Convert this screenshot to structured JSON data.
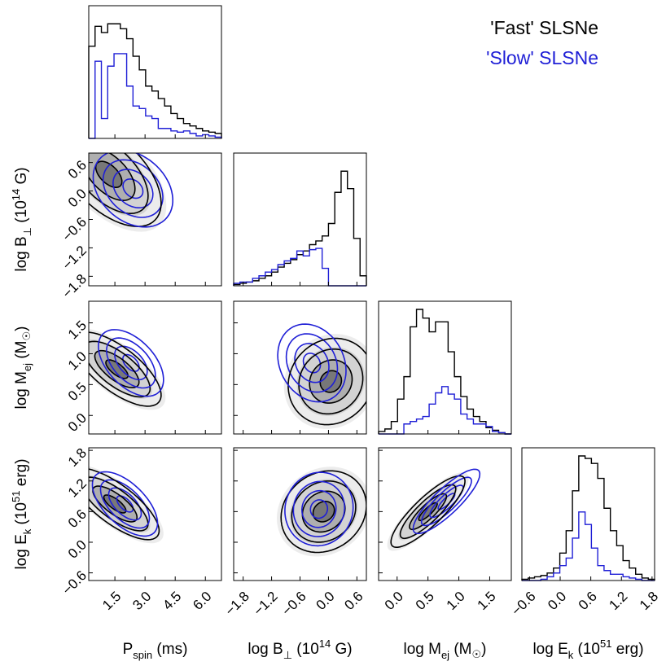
{
  "chart_data": {
    "type": "corner",
    "legend": [
      {
        "label": "'Fast' SLSNe",
        "color": "#000000"
      },
      {
        "label": "'Slow' SLSNe",
        "color": "#1f1fd6"
      }
    ],
    "parameters": [
      {
        "key": "P",
        "base": "P",
        "sub": "spin",
        "unit": "(ms)",
        "range": [
          0.2,
          6.8
        ],
        "ticks": [
          1.5,
          3.0,
          4.5,
          6.0
        ],
        "tick_labels": [
          "1.5",
          "3.0",
          "4.5",
          "6.0"
        ]
      },
      {
        "key": "B",
        "base": "log B",
        "sub": "⊥",
        "unit": "(10",
        "sup": "14",
        "unit_end": " G)",
        "range": [
          -2.0,
          0.8
        ],
        "ticks": [
          -1.8,
          -1.2,
          -0.6,
          0.0,
          0.6
        ],
        "tick_labels": [
          "−1.8",
          "−1.2",
          "−0.6",
          "0.0",
          "0.6"
        ]
      },
      {
        "key": "M",
        "base": "log M",
        "sub": "ej",
        "unit": "(M",
        "sym": "☉",
        "unit_end": ")",
        "range": [
          -0.3,
          1.85
        ],
        "ticks": [
          0.0,
          0.5,
          1.0,
          1.5
        ],
        "tick_labels": [
          "0.0",
          "0.5",
          "1.0",
          "1.5"
        ]
      },
      {
        "key": "E",
        "base": "log E",
        "sub": "k",
        "unit": "(10",
        "sup": "51",
        "unit_end": " erg)",
        "range": [
          -0.75,
          1.85
        ],
        "ticks": [
          -0.6,
          0.0,
          0.6,
          1.2,
          1.8
        ],
        "tick_labels": [
          "−0.6",
          "0.0",
          "0.6",
          "1.2",
          "1.8"
        ]
      }
    ],
    "histograms": [
      {
        "param": "P",
        "bins": [
          0.2,
          6.8
        ],
        "fast": [
          0.74,
          0.9,
          0.85,
          0.92,
          0.92,
          0.88,
          0.8,
          0.66,
          0.55,
          0.42,
          0.38,
          0.32,
          0.26,
          0.2,
          0.16,
          0.12,
          0.1,
          0.08,
          0.06,
          0.05,
          0.04
        ],
        "slow": [
          0.0,
          0.62,
          0.16,
          0.58,
          0.68,
          0.68,
          0.42,
          0.26,
          0.24,
          0.18,
          0.16,
          0.08,
          0.08,
          0.06,
          0.05,
          0.06,
          0.04,
          0.02,
          0.03,
          0.02,
          0.01
        ]
      },
      {
        "param": "B",
        "bins": [
          -2.0,
          0.8
        ],
        "fast": [
          0.01,
          0.02,
          0.03,
          0.04,
          0.06,
          0.08,
          0.11,
          0.15,
          0.18,
          0.21,
          0.25,
          0.28,
          0.33,
          0.36,
          0.4,
          0.5,
          0.75,
          0.92,
          0.78,
          0.38,
          0.08
        ],
        "slow": [
          0.02,
          0.03,
          0.03,
          0.06,
          0.08,
          0.11,
          0.13,
          0.17,
          0.2,
          0.22,
          0.28,
          0.24,
          0.29,
          0.3,
          0.14,
          0.0,
          0.0,
          0.0,
          0.0,
          0.0,
          0.0
        ]
      },
      {
        "param": "M",
        "bins": [
          -0.3,
          1.85
        ],
        "fast": [
          0.02,
          0.04,
          0.1,
          0.28,
          0.46,
          0.86,
          1.0,
          0.93,
          0.82,
          0.9,
          0.9,
          0.66,
          0.46,
          0.3,
          0.2,
          0.14,
          0.1,
          0.05,
          0.03,
          0.01,
          0.0
        ],
        "slow": [
          0.0,
          0.0,
          0.0,
          0.0,
          0.08,
          0.1,
          0.12,
          0.14,
          0.24,
          0.33,
          0.38,
          0.32,
          0.28,
          0.16,
          0.12,
          0.08,
          0.08,
          0.06,
          0.02,
          0.01,
          0.0
        ]
      },
      {
        "param": "E",
        "bins": [
          -0.75,
          1.85
        ],
        "fast": [
          0.01,
          0.02,
          0.03,
          0.04,
          0.06,
          0.1,
          0.22,
          0.4,
          0.72,
          1.0,
          0.98,
          0.94,
          0.82,
          0.58,
          0.4,
          0.28,
          0.16,
          0.1,
          0.05,
          0.02,
          0.01
        ],
        "slow": [
          0.0,
          0.0,
          0.0,
          0.01,
          0.03,
          0.06,
          0.12,
          0.18,
          0.34,
          0.55,
          0.45,
          0.26,
          0.12,
          0.08,
          0.05,
          0.05,
          0.03,
          0.02,
          0.01,
          0.0,
          0.0
        ]
      }
    ],
    "pairs": [
      {
        "x": "P",
        "y": "B",
        "fast": {
          "center": [
            1.2,
            0.35
          ],
          "sigma": [
            1.3,
            0.55
          ],
          "rho": -0.55
        },
        "slow": {
          "center": [
            2.4,
            0.05
          ],
          "sigma": [
            1.1,
            0.45
          ],
          "rho": -0.3
        }
      },
      {
        "x": "P",
        "y": "M",
        "fast": {
          "center": [
            1.6,
            0.75
          ],
          "sigma": [
            1.1,
            0.3
          ],
          "rho": -0.7
        },
        "slow": {
          "center": [
            2.3,
            0.85
          ],
          "sigma": [
            0.9,
            0.3
          ],
          "rho": -0.5
        }
      },
      {
        "x": "B",
        "y": "M",
        "fast": {
          "center": [
            0.05,
            0.55
          ],
          "sigma": [
            0.45,
            0.35
          ],
          "rho": 0.1
        },
        "slow": {
          "center": [
            -0.35,
            0.85
          ],
          "sigma": [
            0.4,
            0.35
          ],
          "rho": -0.2
        }
      },
      {
        "x": "P",
        "y": "E",
        "fast": {
          "center": [
            1.5,
            0.75
          ],
          "sigma": [
            1.1,
            0.35
          ],
          "rho": -0.75
        },
        "slow": {
          "center": [
            2.0,
            0.75
          ],
          "sigma": [
            0.9,
            0.35
          ],
          "rho": -0.6
        }
      },
      {
        "x": "B",
        "y": "E",
        "fast": {
          "center": [
            -0.1,
            0.6
          ],
          "sigma": [
            0.45,
            0.4
          ],
          "rho": 0.15
        },
        "slow": {
          "center": [
            -0.2,
            0.65
          ],
          "sigma": [
            0.4,
            0.4
          ],
          "rho": 0.05
        }
      },
      {
        "x": "M",
        "y": "E",
        "fast": {
          "center": [
            0.5,
            0.6
          ],
          "sigma": [
            0.3,
            0.35
          ],
          "rho": 0.85
        },
        "slow": {
          "center": [
            0.8,
            0.8
          ],
          "sigma": [
            0.3,
            0.35
          ],
          "rho": 0.85
        }
      }
    ],
    "contour_levels": [
      0.5,
      1.0,
      1.5,
      2.0
    ]
  }
}
